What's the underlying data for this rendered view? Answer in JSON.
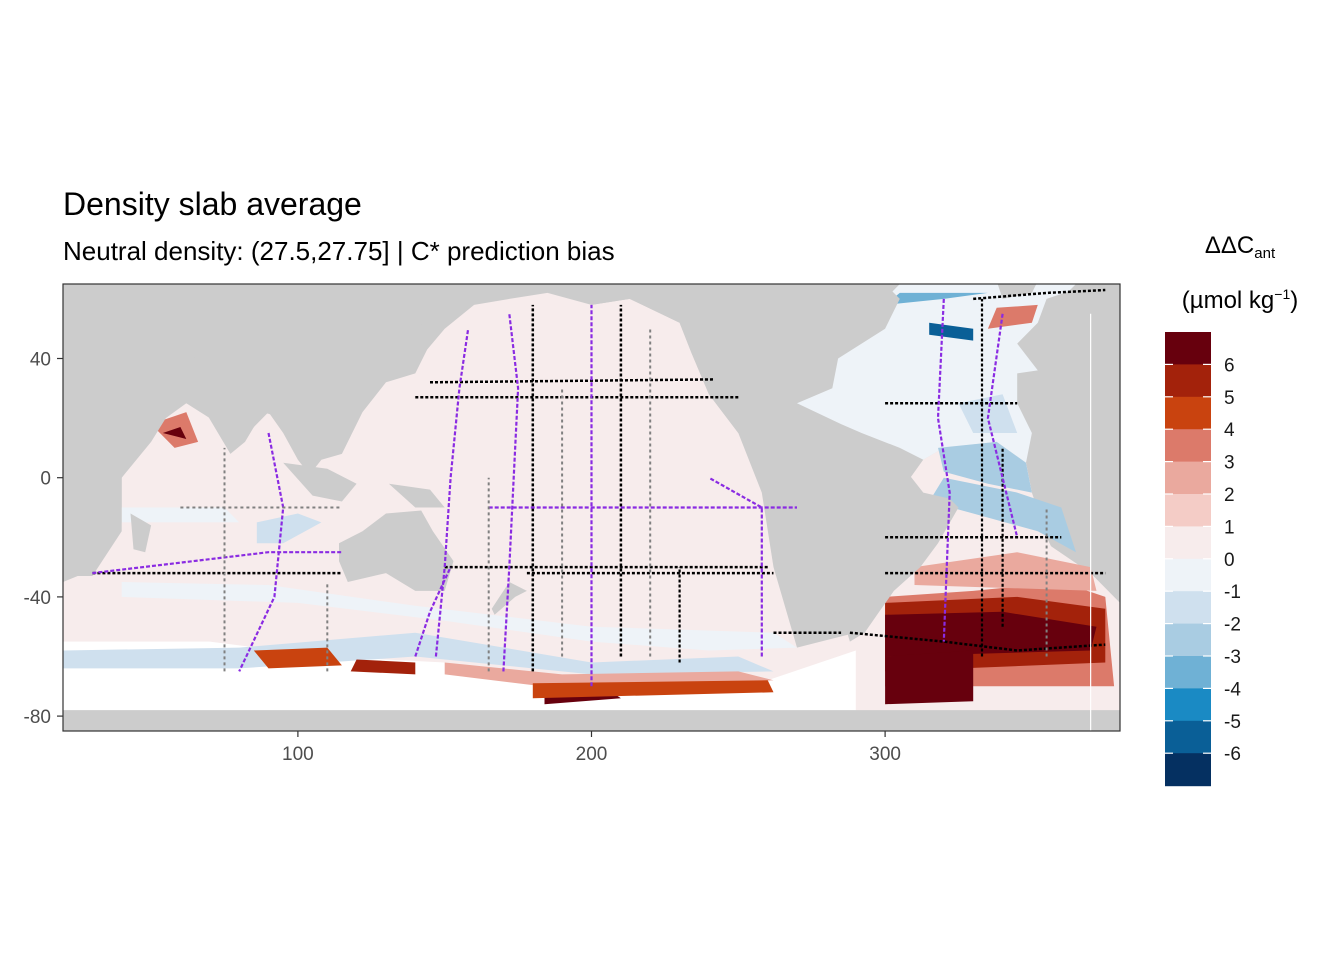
{
  "title": "Density slab average",
  "subtitle": "Neutral density: (27.5,27.75] | C* prediction bias",
  "legend": {
    "title_main": "ΔΔC",
    "title_sub": "ant",
    "unit_open": "(µmol kg",
    "unit_sup": "−1",
    "unit_close": ")",
    "bins": [
      {
        "label": "6",
        "color": "#67000d"
      },
      {
        "label": "5",
        "color": "#a3220b"
      },
      {
        "label": "4",
        "color": "#c9430f"
      },
      {
        "label": "3",
        "color": "#dc7a6a"
      },
      {
        "label": "2",
        "color": "#eaa99e"
      },
      {
        "label": "1",
        "color": "#f4ccc6"
      },
      {
        "label": "0",
        "color": "#f7ecec"
      },
      {
        "label": "-1",
        "color": "#eef3f8"
      },
      {
        "label": "-2",
        "color": "#cfe0ee"
      },
      {
        "label": "-3",
        "color": "#a9cce2"
      },
      {
        "label": "-4",
        "color": "#6fb1d5"
      },
      {
        "label": "-5",
        "color": "#1a8ac4"
      },
      {
        "label": "-6",
        "color": "#0a5f97"
      },
      {
        "label": "",
        "color": "#053061"
      }
    ]
  },
  "map": {
    "x_ticks": [
      100,
      200,
      300
    ],
    "y_ticks": [
      40,
      0,
      -40,
      -80
    ],
    "xlim": [
      20,
      380
    ],
    "ylim": [
      -85,
      65
    ],
    "land_color": "#cccccc",
    "missing_color": "#ffffff",
    "track_colors": {
      "black": "#000000",
      "purple": "#8a2be2",
      "grey": "#808080"
    }
  }
}
